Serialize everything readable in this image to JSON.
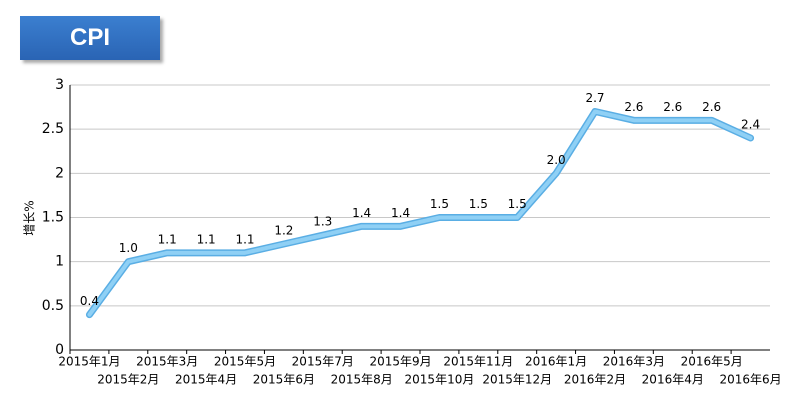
{
  "chart_data": {
    "type": "line",
    "title": "CPI",
    "ylabel": "增长%",
    "categories": [
      "2015年1月",
      "2015年2月",
      "2015年3月",
      "2015年4月",
      "2015年5月",
      "2015年6月",
      "2015年7月",
      "2015年8月",
      "2015年9月",
      "2015年10月",
      "2015年11月",
      "2015年12月",
      "2016年1月",
      "2016年2月",
      "2016年3月",
      "2016年4月",
      "2016年5月",
      "2016年6月"
    ],
    "values": [
      0.4,
      1.0,
      1.1,
      1.1,
      1.1,
      1.2,
      1.3,
      1.4,
      1.4,
      1.5,
      1.5,
      1.5,
      2.0,
      2.7,
      2.6,
      2.6,
      2.6,
      2.4
    ],
    "value_labels": [
      "0.4",
      "1.0",
      "1.1",
      "1.1",
      "1.1",
      "1.2",
      "1.3",
      "1.4",
      "1.4",
      "1.5",
      "1.5",
      "1.5",
      "2.0",
      "2.7",
      "2.6",
      "2.6",
      "2.6",
      "2.4"
    ],
    "color": "#8fd0f5",
    "outline_color": "#5aaee4",
    "ylim": [
      0,
      3
    ],
    "yticks": [
      0,
      0.5,
      1,
      1.5,
      2,
      2.5,
      3
    ],
    "grid": true
  }
}
